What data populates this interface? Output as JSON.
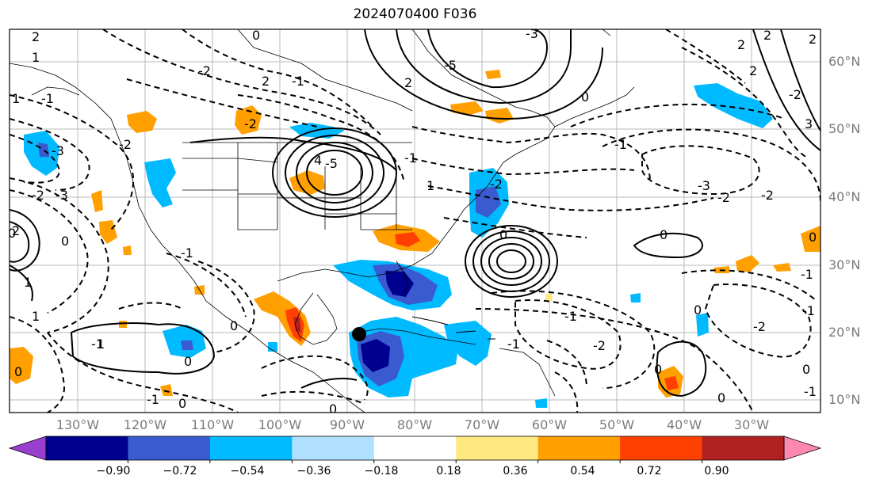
{
  "title": "2024070400 F036",
  "lat_labels": [
    "60°N",
    "50°N",
    "40°N",
    "30°N",
    "20°N",
    "10°N"
  ],
  "lon_labels": [
    "130°W",
    "120°W",
    "110°W",
    "100°W",
    "90°W",
    "80°W",
    "70°W",
    "60°W",
    "50°W",
    "40°W",
    "30°W"
  ],
  "colorbar": {
    "ticks": [
      "−0.90",
      "−0.72",
      "−0.54",
      "−0.36",
      "−0.18",
      "0.18",
      "0.36",
      "0.54",
      "0.72",
      "0.90"
    ],
    "under_color": "#9a3ed0",
    "over_color": "#ff88b0",
    "colors": [
      "#9a3ed0",
      "#000090",
      "#3a5ad0",
      "#00baff",
      "#b0e0ff",
      "#ffffff",
      "#ffe880",
      "#ffa000",
      "#ff4000",
      "#b02020",
      "#ff88b0"
    ]
  },
  "contour_labels": [
    "2",
    "2",
    "0",
    "-1",
    "2",
    "1",
    "2",
    "-3",
    "2",
    "2",
    "-5",
    "-2",
    "2",
    "-2",
    "-1",
    "1",
    "0",
    "-2",
    "-3",
    "3",
    "-2",
    "4",
    "-1",
    "-5",
    "-1",
    "-3",
    "-2",
    "1",
    "-2",
    "0",
    "2",
    "-1",
    "-2",
    "0",
    "-3",
    "-2",
    "0",
    "1",
    "0",
    "0",
    "-1",
    "0",
    "-1",
    "-2",
    "-1",
    "0",
    "1",
    "0",
    "0",
    "0",
    "-1",
    "-1",
    "1",
    "0",
    "-1",
    "0",
    "0",
    "-1",
    "-2",
    "0"
  ]
}
